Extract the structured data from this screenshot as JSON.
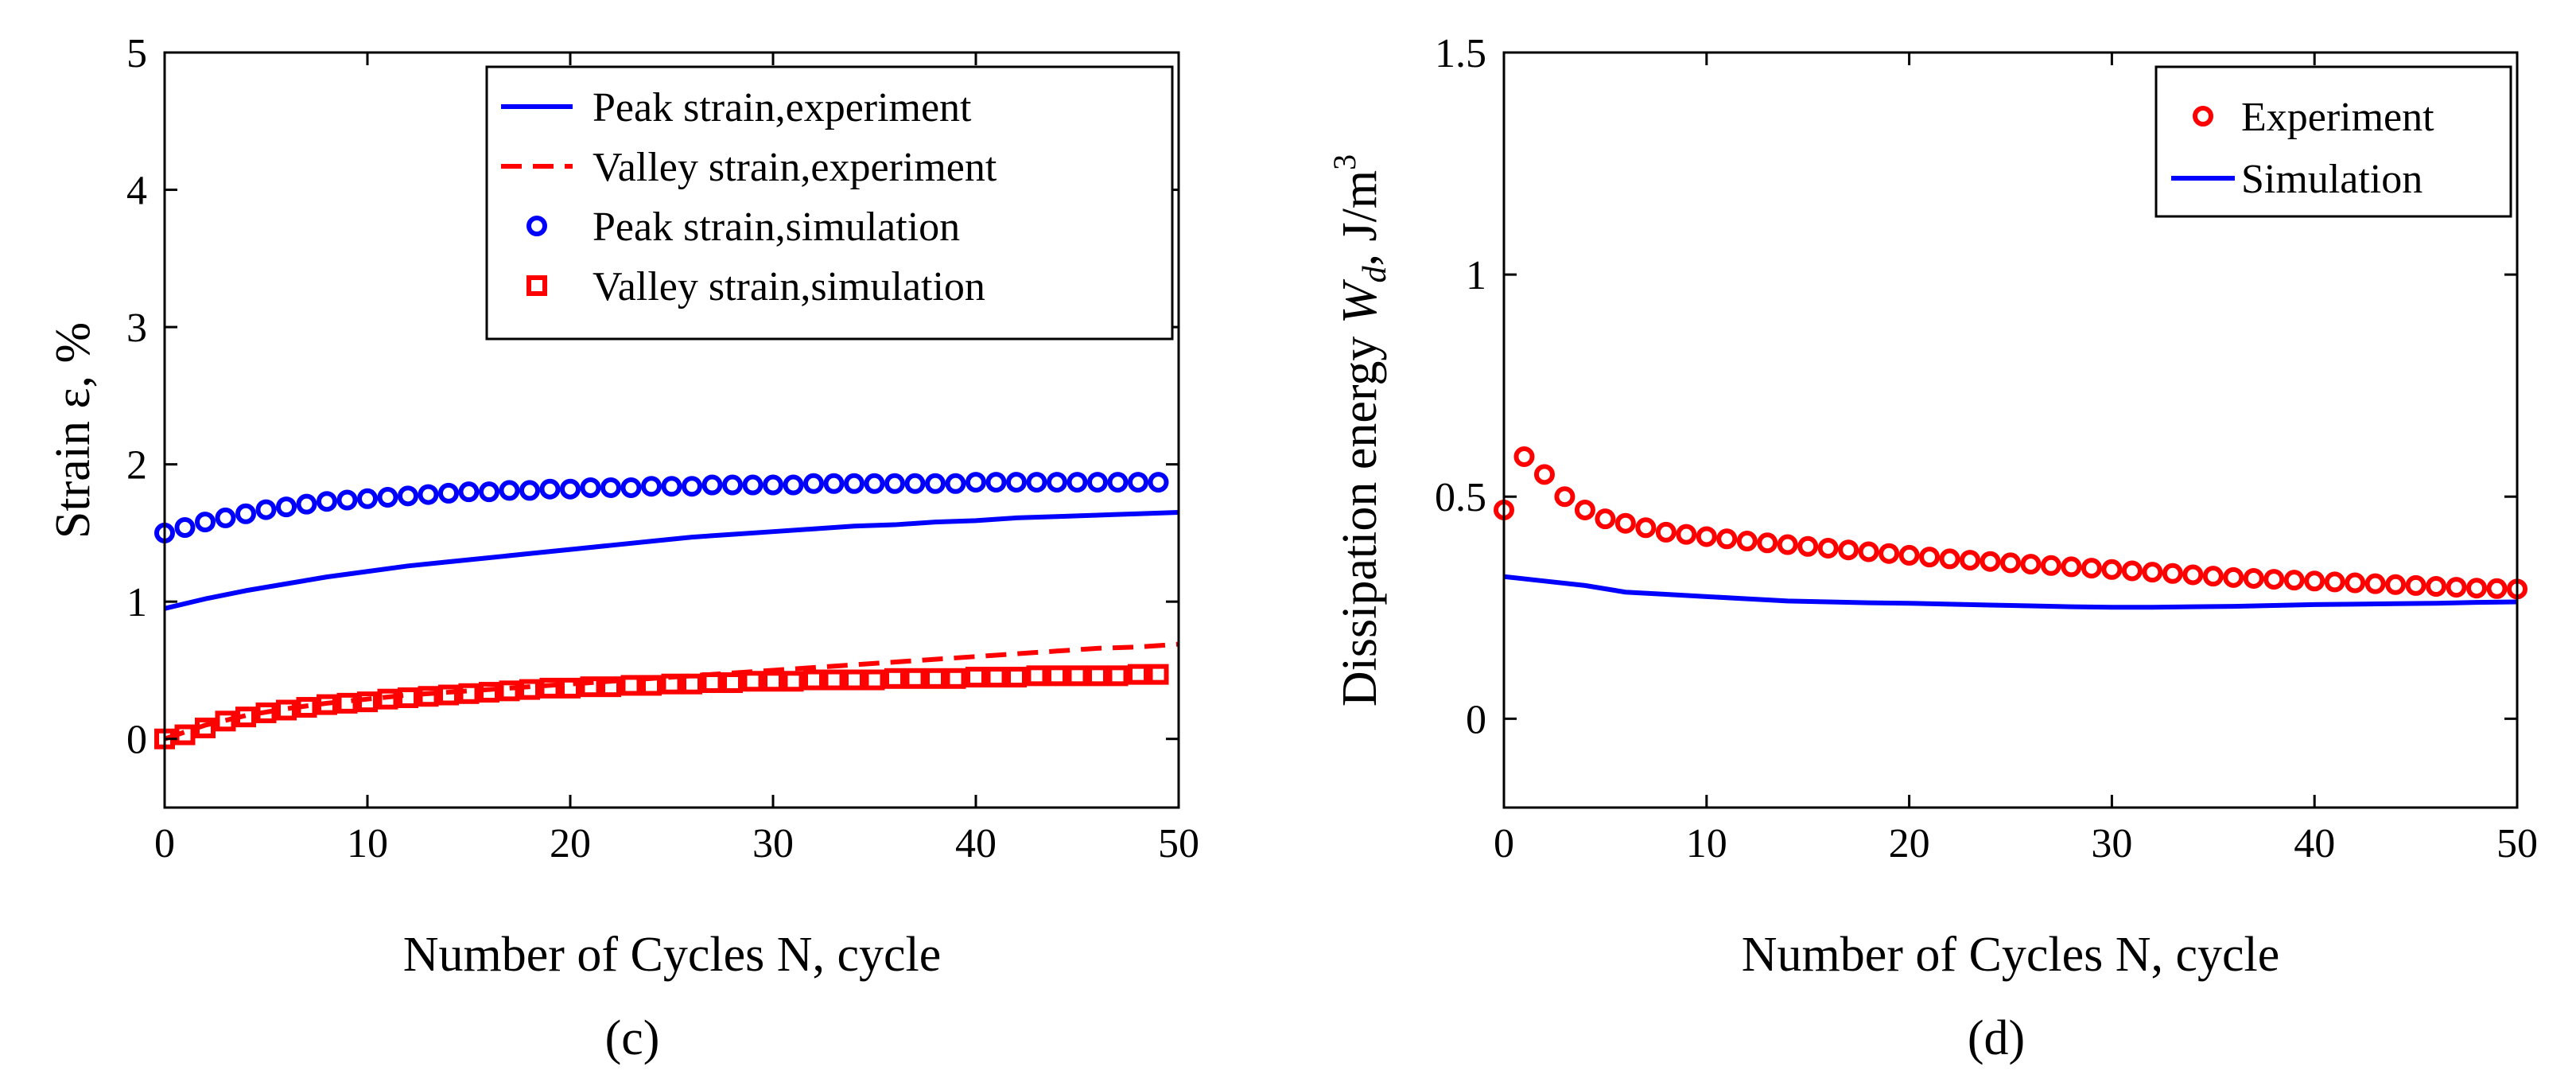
{
  "chart_data": [
    {
      "type": "line",
      "panel_caption": "(c)",
      "xlabel": "Number of Cycles  N, cycle",
      "ylabel": "Strain  ε, %",
      "xlim": [
        0,
        50
      ],
      "ylim": [
        -0.5,
        5
      ],
      "xticks": [
        0,
        10,
        20,
        30,
        40,
        50
      ],
      "yticks": [
        0,
        1,
        2,
        3,
        4,
        5
      ],
      "legend_position": "top-right",
      "series": [
        {
          "name": "Peak strain,experiment",
          "style": "solid-line",
          "color": "#0000ff",
          "x": [
            0,
            2,
            4,
            6,
            8,
            10,
            12,
            14,
            16,
            18,
            20,
            22,
            24,
            26,
            28,
            30,
            32,
            34,
            36,
            38,
            40,
            42,
            44,
            46,
            48,
            50
          ],
          "values": [
            0.95,
            1.02,
            1.08,
            1.13,
            1.18,
            1.22,
            1.26,
            1.29,
            1.32,
            1.35,
            1.38,
            1.41,
            1.44,
            1.47,
            1.49,
            1.51,
            1.53,
            1.55,
            1.56,
            1.58,
            1.59,
            1.61,
            1.62,
            1.63,
            1.64,
            1.65
          ]
        },
        {
          "name": "Valley strain,experiment",
          "style": "dashed-line",
          "color": "#ff0000",
          "x": [
            0,
            2,
            4,
            6,
            8,
            10,
            12,
            14,
            16,
            18,
            20,
            22,
            24,
            26,
            28,
            30,
            32,
            34,
            36,
            38,
            40,
            42,
            44,
            46,
            48,
            50
          ],
          "values": [
            0.0,
            0.1,
            0.17,
            0.22,
            0.26,
            0.29,
            0.32,
            0.34,
            0.36,
            0.38,
            0.4,
            0.42,
            0.44,
            0.46,
            0.48,
            0.5,
            0.52,
            0.54,
            0.56,
            0.58,
            0.6,
            0.62,
            0.64,
            0.66,
            0.67,
            0.69
          ]
        },
        {
          "name": "Peak strain,simulation",
          "style": "circle-markers",
          "color": "#0000ff",
          "x": [
            0,
            1,
            2,
            3,
            4,
            5,
            6,
            7,
            8,
            9,
            10,
            11,
            12,
            13,
            14,
            15,
            16,
            17,
            18,
            19,
            20,
            21,
            22,
            23,
            24,
            25,
            26,
            27,
            28,
            29,
            30,
            31,
            32,
            33,
            34,
            35,
            36,
            37,
            38,
            39,
            40,
            41,
            42,
            43,
            44,
            45,
            46,
            47,
            48,
            49
          ],
          "values": [
            1.5,
            1.54,
            1.58,
            1.61,
            1.64,
            1.67,
            1.69,
            1.71,
            1.73,
            1.74,
            1.75,
            1.76,
            1.77,
            1.78,
            1.79,
            1.8,
            1.8,
            1.81,
            1.81,
            1.82,
            1.82,
            1.83,
            1.83,
            1.83,
            1.84,
            1.84,
            1.84,
            1.85,
            1.85,
            1.85,
            1.85,
            1.85,
            1.86,
            1.86,
            1.86,
            1.86,
            1.86,
            1.86,
            1.86,
            1.86,
            1.87,
            1.87,
            1.87,
            1.87,
            1.87,
            1.87,
            1.87,
            1.87,
            1.87,
            1.87
          ]
        },
        {
          "name": "Valley strain,simulation",
          "style": "square-markers",
          "color": "#ff0000",
          "x": [
            0,
            1,
            2,
            3,
            4,
            5,
            6,
            7,
            8,
            9,
            10,
            11,
            12,
            13,
            14,
            15,
            16,
            17,
            18,
            19,
            20,
            21,
            22,
            23,
            24,
            25,
            26,
            27,
            28,
            29,
            30,
            31,
            32,
            33,
            34,
            35,
            36,
            37,
            38,
            39,
            40,
            41,
            42,
            43,
            44,
            45,
            46,
            47,
            48,
            49
          ],
          "values": [
            0.0,
            0.03,
            0.08,
            0.13,
            0.16,
            0.19,
            0.21,
            0.23,
            0.25,
            0.26,
            0.27,
            0.29,
            0.3,
            0.31,
            0.32,
            0.33,
            0.34,
            0.35,
            0.36,
            0.37,
            0.37,
            0.38,
            0.38,
            0.39,
            0.39,
            0.4,
            0.4,
            0.41,
            0.41,
            0.42,
            0.42,
            0.42,
            0.43,
            0.43,
            0.43,
            0.43,
            0.44,
            0.44,
            0.44,
            0.44,
            0.45,
            0.45,
            0.45,
            0.46,
            0.46,
            0.46,
            0.46,
            0.46,
            0.47,
            0.47
          ]
        }
      ]
    },
    {
      "type": "line",
      "panel_caption": "(d)",
      "xlabel": "Number of Cycles  N, cycle",
      "ylabel": "Dissipation energy W_d, J/m^3",
      "xlim": [
        0,
        50
      ],
      "ylim": [
        -0.2,
        1.5
      ],
      "xticks": [
        0,
        10,
        20,
        30,
        40,
        50
      ],
      "yticks": [
        0,
        0.5,
        1,
        1.5
      ],
      "legend_position": "top-right",
      "series": [
        {
          "name": "Experiment",
          "style": "circle-markers",
          "color": "#ff0000",
          "x": [
            0,
            1,
            2,
            3,
            4,
            5,
            6,
            7,
            8,
            9,
            10,
            11,
            12,
            13,
            14,
            15,
            16,
            17,
            18,
            19,
            20,
            21,
            22,
            23,
            24,
            25,
            26,
            27,
            28,
            29,
            30,
            31,
            32,
            33,
            34,
            35,
            36,
            37,
            38,
            39,
            40,
            41,
            42,
            43,
            44,
            45,
            46,
            47,
            48,
            49,
            50
          ],
          "values": [
            0.47,
            0.59,
            0.55,
            0.5,
            0.47,
            0.45,
            0.44,
            0.43,
            0.42,
            0.415,
            0.41,
            0.405,
            0.4,
            0.396,
            0.392,
            0.388,
            0.384,
            0.38,
            0.376,
            0.372,
            0.368,
            0.364,
            0.36,
            0.357,
            0.354,
            0.351,
            0.348,
            0.345,
            0.342,
            0.339,
            0.336,
            0.333,
            0.33,
            0.327,
            0.324,
            0.321,
            0.318,
            0.316,
            0.314,
            0.312,
            0.31,
            0.308,
            0.306,
            0.304,
            0.302,
            0.3,
            0.298,
            0.296,
            0.294,
            0.293,
            0.292
          ]
        },
        {
          "name": "Simulation",
          "style": "solid-line",
          "color": "#0000ff",
          "x": [
            0,
            2,
            4,
            6,
            8,
            10,
            12,
            14,
            16,
            18,
            20,
            22,
            24,
            26,
            28,
            30,
            32,
            34,
            36,
            38,
            40,
            42,
            44,
            46,
            48,
            50
          ],
          "values": [
            0.32,
            0.31,
            0.3,
            0.285,
            0.28,
            0.275,
            0.27,
            0.265,
            0.263,
            0.261,
            0.26,
            0.258,
            0.256,
            0.254,
            0.252,
            0.251,
            0.251,
            0.252,
            0.253,
            0.255,
            0.257,
            0.258,
            0.259,
            0.26,
            0.262,
            0.263
          ]
        }
      ]
    }
  ]
}
